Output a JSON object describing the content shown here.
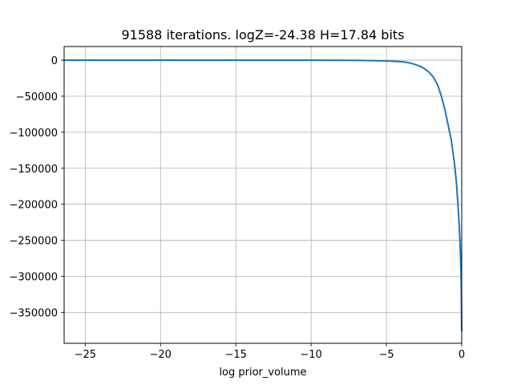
{
  "chart_data": {
    "type": "line",
    "title": "91588 iterations. logZ=-24.38 H=17.84 bits",
    "xlabel": "log prior_volume",
    "ylabel": "",
    "xlim": [
      -26.4,
      0
    ],
    "ylim": [
      -393000,
      19000
    ],
    "xticks": [
      -25,
      -20,
      -15,
      -10,
      -5,
      0
    ],
    "xtick_labels": [
      "−25",
      "−20",
      "−15",
      "−10",
      "−5",
      "0"
    ],
    "yticks": [
      0,
      -50000,
      -100000,
      -150000,
      -200000,
      -250000,
      -300000,
      -350000
    ],
    "ytick_labels": [
      "0",
      "−50000",
      "−100000",
      "−150000",
      "−200000",
      "−250000",
      "−300000",
      "−350000"
    ],
    "grid": true,
    "series": [
      {
        "name": "",
        "color": "#1f77b4",
        "x": [
          -26.4,
          -20,
          -15,
          -10,
          -7,
          -5,
          -4,
          -3.5,
          -3,
          -2.6,
          -2.2,
          -1.9,
          -1.6,
          -1.35,
          -1.1,
          -0.9,
          -0.7,
          -0.5,
          -0.35,
          -0.25,
          -0.15,
          -0.08,
          -0.04,
          -0.02,
          -0.01,
          0
        ],
        "y": [
          0,
          0,
          0,
          0,
          -200,
          -1000,
          -2000,
          -3500,
          -6500,
          -10000,
          -16000,
          -23000,
          -34000,
          -50000,
          -70000,
          -90000,
          -110000,
          -140000,
          -170000,
          -200000,
          -235000,
          -270000,
          -300000,
          -330000,
          -355000,
          -375000
        ]
      }
    ]
  }
}
